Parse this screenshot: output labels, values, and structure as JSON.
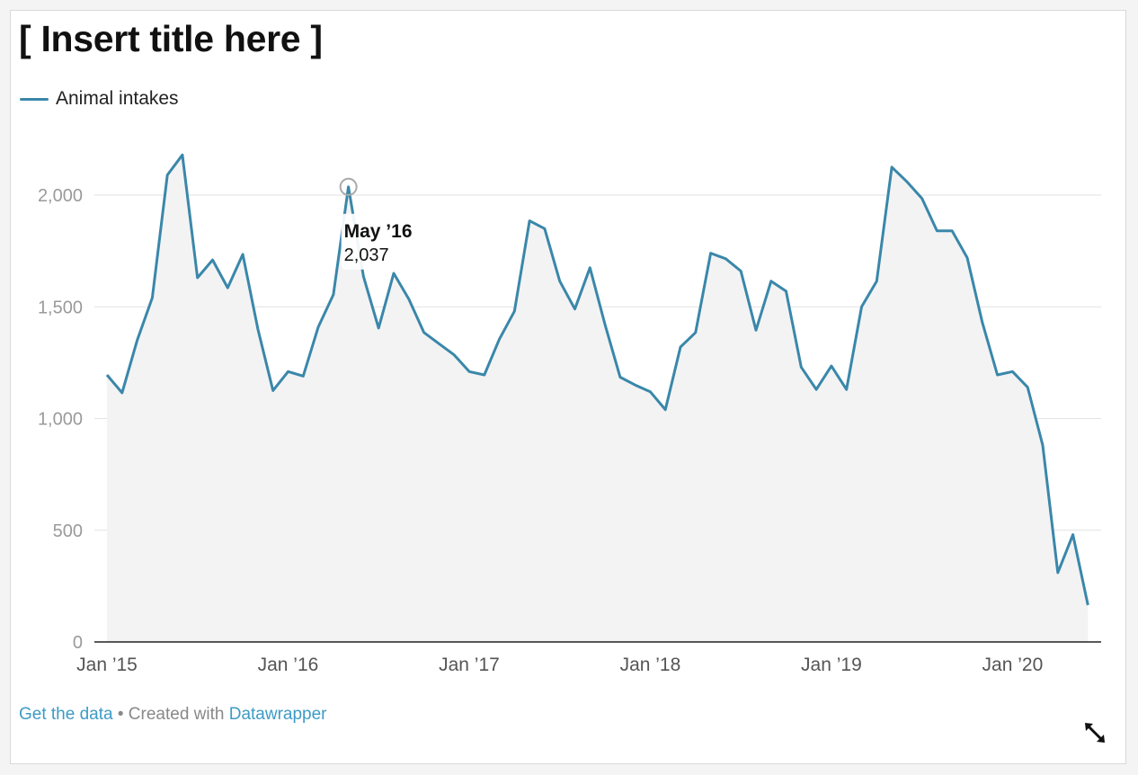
{
  "title": "[ Insert title here ]",
  "footer": {
    "get_data": "Get the data",
    "separator": " • Created with ",
    "datawrapper": "Datawrapper"
  },
  "colors": {
    "line": "#3a87aa",
    "area": "#f3f3f4",
    "grid": "#e2e2e2",
    "axis": "#222222",
    "tick": "#9a9a9a",
    "accent": "#3d9bc6"
  },
  "icons": {
    "expand": "expand-icon"
  },
  "chart_data": {
    "type": "area",
    "grid": true,
    "legend_position": "top-left",
    "ylim": [
      0,
      2250
    ],
    "yticks": [
      0,
      500,
      1000,
      1500,
      2000
    ],
    "ytick_labels": [
      "0",
      "500",
      "1,000",
      "1,500",
      "2,000"
    ],
    "xticks": [
      "2015-01",
      "2016-01",
      "2017-01",
      "2018-01",
      "2019-01",
      "2020-01"
    ],
    "xtick_labels": [
      "Jan ’15",
      "Jan ’16",
      "Jan ’17",
      "Jan ’18",
      "Jan ’19",
      "Jan ’20"
    ],
    "series": [
      {
        "name": "Animal intakes",
        "x": [
          "2015-01",
          "2015-02",
          "2015-03",
          "2015-04",
          "2015-05",
          "2015-06",
          "2015-07",
          "2015-08",
          "2015-09",
          "2015-10",
          "2015-11",
          "2015-12",
          "2016-01",
          "2016-02",
          "2016-03",
          "2016-04",
          "2016-05",
          "2016-06",
          "2016-07",
          "2016-08",
          "2016-09",
          "2016-10",
          "2016-11",
          "2016-12",
          "2017-01",
          "2017-02",
          "2017-03",
          "2017-04",
          "2017-05",
          "2017-06",
          "2017-07",
          "2017-08",
          "2017-09",
          "2017-10",
          "2017-11",
          "2017-12",
          "2018-01",
          "2018-02",
          "2018-03",
          "2018-04",
          "2018-05",
          "2018-06",
          "2018-07",
          "2018-08",
          "2018-09",
          "2018-10",
          "2018-11",
          "2018-12",
          "2019-01",
          "2019-02",
          "2019-03",
          "2019-04",
          "2019-05",
          "2019-06",
          "2019-07",
          "2019-08",
          "2019-09",
          "2019-10",
          "2019-11",
          "2019-12",
          "2020-01",
          "2020-02",
          "2020-03",
          "2020-04",
          "2020-05",
          "2020-06"
        ],
        "y": [
          1195,
          1115,
          1350,
          1540,
          2090,
          2180,
          1630,
          1710,
          1585,
          1735,
          1400,
          1125,
          1210,
          1190,
          1410,
          1555,
          2037,
          1635,
          1405,
          1650,
          1535,
          1385,
          1335,
          1285,
          1210,
          1195,
          1355,
          1480,
          1885,
          1850,
          1615,
          1490,
          1675,
          1420,
          1185,
          1150,
          1120,
          1040,
          1320,
          1385,
          1740,
          1715,
          1660,
          1395,
          1615,
          1570,
          1230,
          1130,
          1235,
          1130,
          1500,
          1615,
          2125,
          2060,
          1985,
          1840,
          1840,
          1720,
          1430,
          1195,
          1210,
          1140,
          880,
          310,
          480,
          165
        ]
      }
    ],
    "tooltip": {
      "x": "2016-05",
      "label": "May ’16",
      "value": "2,037"
    }
  }
}
